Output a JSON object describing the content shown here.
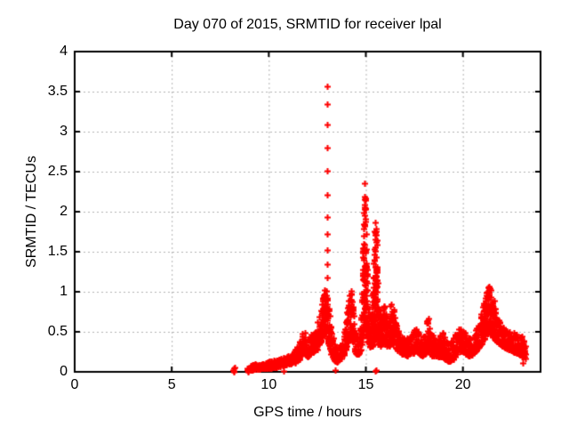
{
  "chart_data": {
    "type": "scatter",
    "title": "Day 070 of 2015, SRMTID for receiver lpal",
    "xlabel": "GPS time / hours",
    "ylabel": "SRMTID / TECUs",
    "xlim": [
      0,
      24
    ],
    "ylim": [
      0,
      4
    ],
    "grid": true,
    "legend": "none",
    "marker": "plus",
    "marker_color": "#ff0000",
    "grid_color": "#b4b4b4",
    "frame_color": "#000000",
    "x_ticks": [
      0,
      5,
      10,
      15,
      20
    ],
    "x_tick_labels": [
      "0",
      "5",
      "10",
      "15",
      "20"
    ],
    "y_ticks": [
      0,
      0.5,
      1,
      1.5,
      2,
      2.5,
      3,
      3.5,
      4
    ],
    "y_tick_labels": [
      "0",
      "0.5",
      "1",
      "1.5",
      "2",
      "2.5",
      "3",
      "3.5",
      "4"
    ],
    "data_start_hour": 8.17,
    "data_end_hour": 23.2,
    "peak_value": 3.57,
    "peak_hour": 13.0,
    "envelope_nodes": [
      [
        9.05,
        0.02,
        0.09
      ],
      [
        9.3,
        0.03,
        0.1
      ],
      [
        9.6,
        0.04,
        0.11
      ],
      [
        9.9,
        0.04,
        0.13
      ],
      [
        10.2,
        0.05,
        0.15
      ],
      [
        10.5,
        0.06,
        0.16
      ],
      [
        10.8,
        0.08,
        0.18
      ],
      [
        11.0,
        0.09,
        0.2
      ],
      [
        11.2,
        0.1,
        0.24
      ],
      [
        11.45,
        0.12,
        0.3
      ],
      [
        11.65,
        0.18,
        0.42
      ],
      [
        11.8,
        0.25,
        0.57
      ],
      [
        11.9,
        0.22,
        0.48
      ],
      [
        12.0,
        0.18,
        0.35
      ],
      [
        12.15,
        0.25,
        0.52
      ],
      [
        12.3,
        0.24,
        0.45
      ],
      [
        12.5,
        0.28,
        0.6
      ],
      [
        12.65,
        0.35,
        0.8
      ],
      [
        12.8,
        0.45,
        1.0
      ],
      [
        12.9,
        0.5,
        1.08
      ],
      [
        13.0,
        0.42,
        1.02
      ],
      [
        13.1,
        0.32,
        0.85
      ],
      [
        13.2,
        0.22,
        0.55
      ],
      [
        13.35,
        0.15,
        0.38
      ],
      [
        13.5,
        0.12,
        0.3
      ],
      [
        13.65,
        0.14,
        0.32
      ],
      [
        13.8,
        0.18,
        0.4
      ],
      [
        13.95,
        0.25,
        0.6
      ],
      [
        14.1,
        0.35,
        0.9
      ],
      [
        14.2,
        0.42,
        1.07
      ],
      [
        14.3,
        0.38,
        0.95
      ],
      [
        14.4,
        0.28,
        0.65
      ],
      [
        14.5,
        0.22,
        0.45
      ],
      [
        14.65,
        0.2,
        0.42
      ],
      [
        14.75,
        0.28,
        0.7
      ],
      [
        14.83,
        0.4,
        1.3
      ],
      [
        14.88,
        0.5,
        2.2
      ],
      [
        14.93,
        0.55,
        2.48
      ],
      [
        14.98,
        0.5,
        2.3
      ],
      [
        15.03,
        0.45,
        1.6
      ],
      [
        15.1,
        0.38,
        1.0
      ],
      [
        15.2,
        0.32,
        0.7
      ],
      [
        15.3,
        0.3,
        0.75
      ],
      [
        15.4,
        0.35,
        1.3
      ],
      [
        15.47,
        0.38,
        1.95
      ],
      [
        15.55,
        0.38,
        1.8
      ],
      [
        15.62,
        0.35,
        1.1
      ],
      [
        15.7,
        0.32,
        0.8
      ],
      [
        15.85,
        0.32,
        0.72
      ],
      [
        15.95,
        0.35,
        0.87
      ],
      [
        16.05,
        0.32,
        0.7
      ],
      [
        16.2,
        0.32,
        0.75
      ],
      [
        16.32,
        0.35,
        0.9
      ],
      [
        16.45,
        0.32,
        0.78
      ],
      [
        16.6,
        0.28,
        0.6
      ],
      [
        16.75,
        0.24,
        0.5
      ],
      [
        16.9,
        0.22,
        0.46
      ],
      [
        17.1,
        0.2,
        0.42
      ],
      [
        17.3,
        0.22,
        0.46
      ],
      [
        17.5,
        0.24,
        0.52
      ],
      [
        17.62,
        0.26,
        0.58
      ],
      [
        17.75,
        0.22,
        0.46
      ],
      [
        17.9,
        0.2,
        0.44
      ],
      [
        18.05,
        0.22,
        0.48
      ],
      [
        18.2,
        0.25,
        0.74
      ],
      [
        18.3,
        0.22,
        0.52
      ],
      [
        18.45,
        0.2,
        0.46
      ],
      [
        18.6,
        0.2,
        0.44
      ],
      [
        18.8,
        0.18,
        0.46
      ],
      [
        18.95,
        0.2,
        0.5
      ],
      [
        19.1,
        0.15,
        0.4
      ],
      [
        19.3,
        0.12,
        0.34
      ],
      [
        19.5,
        0.16,
        0.42
      ],
      [
        19.7,
        0.22,
        0.52
      ],
      [
        19.85,
        0.26,
        0.58
      ],
      [
        20.0,
        0.26,
        0.56
      ],
      [
        20.15,
        0.22,
        0.46
      ],
      [
        20.3,
        0.18,
        0.42
      ],
      [
        20.45,
        0.2,
        0.44
      ],
      [
        20.6,
        0.24,
        0.5
      ],
      [
        20.75,
        0.28,
        0.58
      ],
      [
        20.9,
        0.32,
        0.68
      ],
      [
        21.05,
        0.38,
        0.85
      ],
      [
        21.2,
        0.45,
        1.02
      ],
      [
        21.35,
        0.5,
        1.09
      ],
      [
        21.5,
        0.45,
        1.0
      ],
      [
        21.65,
        0.4,
        0.82
      ],
      [
        21.8,
        0.36,
        0.68
      ],
      [
        21.95,
        0.34,
        0.62
      ],
      [
        22.1,
        0.3,
        0.56
      ],
      [
        22.3,
        0.28,
        0.52
      ],
      [
        22.5,
        0.26,
        0.5
      ],
      [
        22.7,
        0.24,
        0.48
      ],
      [
        22.9,
        0.22,
        0.45
      ],
      [
        23.05,
        0.18,
        0.42
      ],
      [
        23.2,
        0.15,
        0.38
      ]
    ],
    "spike_column_points": [
      [
        13.02,
        3.57
      ],
      [
        13.03,
        3.34
      ],
      [
        13.02,
        3.09
      ],
      [
        13.03,
        2.8
      ],
      [
        13.02,
        2.51
      ],
      [
        13.03,
        2.21
      ],
      [
        13.02,
        1.93
      ],
      [
        13.03,
        1.72
      ],
      [
        13.02,
        1.52
      ],
      [
        13.03,
        1.35
      ],
      [
        13.02,
        1.18
      ]
    ],
    "extra_points": [
      [
        8.17,
        0.02
      ],
      [
        8.2,
        0.04
      ],
      [
        8.22,
        0.01
      ],
      [
        8.24,
        0.06
      ],
      [
        8.19,
        0.0
      ],
      [
        8.87,
        0.02
      ],
      [
        8.9,
        0.05
      ],
      [
        8.93,
        0.01
      ],
      [
        8.95,
        0.03
      ],
      [
        8.91,
        0.0
      ],
      [
        10.78,
        0.01
      ],
      [
        13.42,
        0.02
      ],
      [
        15.48,
        0.01
      ],
      [
        15.51,
        0.02
      ],
      [
        23.1,
        0.11
      ],
      [
        23.05,
        0.44
      ],
      [
        23.15,
        0.3
      ],
      [
        23.18,
        0.25
      ]
    ],
    "sample_step_hours": 0.015,
    "random_seed": 70
  }
}
